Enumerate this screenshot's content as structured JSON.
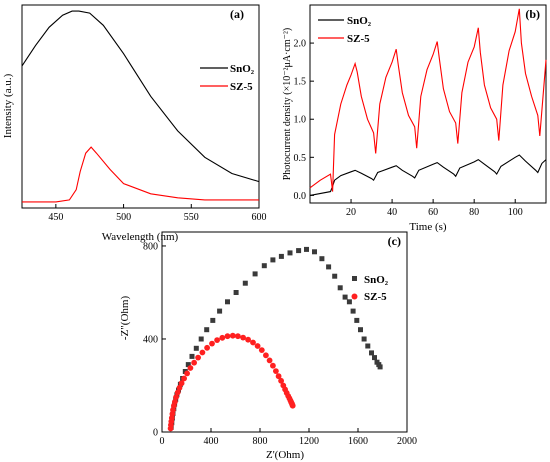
{
  "chart_data": [
    {
      "panel_label": "(a)",
      "type": "line",
      "xlabel": "Wavelength (nm)",
      "ylabel": "Intensity (a.u.)",
      "xlim": [
        425,
        600
      ],
      "ylim": [
        0,
        1.0
      ],
      "x_ticks": [
        450,
        500,
        550,
        600
      ],
      "y_ticks": [],
      "legend_placement": "right",
      "series": [
        {
          "name": "SnO₂",
          "color": "#000000",
          "x": [
            425,
            435,
            445,
            455,
            462,
            467,
            475,
            485,
            500,
            520,
            540,
            560,
            580,
            600
          ],
          "y": [
            0.7,
            0.8,
            0.89,
            0.95,
            0.97,
            0.97,
            0.96,
            0.9,
            0.76,
            0.55,
            0.38,
            0.25,
            0.17,
            0.13
          ]
        },
        {
          "name": "SZ-5",
          "color": "#ff0000",
          "x": [
            425,
            450,
            460,
            465,
            468,
            472,
            476,
            480,
            490,
            500,
            520,
            540,
            560,
            600
          ],
          "y": [
            0.03,
            0.03,
            0.04,
            0.09,
            0.18,
            0.27,
            0.3,
            0.27,
            0.19,
            0.12,
            0.07,
            0.05,
            0.04,
            0.04
          ]
        }
      ]
    },
    {
      "panel_label": "(b)",
      "type": "line",
      "xlabel": "Time (s)",
      "ylabel": "Photocurrent density (×10⁻²μA·cm⁻²)",
      "xlim": [
        0,
        115
      ],
      "ylim": [
        -0.1,
        2.5
      ],
      "x_ticks": [
        20,
        40,
        60,
        80,
        100
      ],
      "y_ticks": [
        0.0,
        0.5,
        1.0,
        1.5,
        2.0
      ],
      "legend_placement": "top-left",
      "series": [
        {
          "name": "SnO₂",
          "color": "#000000",
          "x": [
            0,
            10,
            11,
            12,
            15,
            20,
            22,
            25,
            30,
            31,
            33,
            40,
            42,
            45,
            50,
            51,
            53,
            60,
            62,
            65,
            70,
            71,
            73,
            80,
            82,
            85,
            90,
            91,
            93,
            100,
            102,
            105,
            110,
            111,
            113,
            115
          ],
          "y": [
            0.0,
            0.05,
            0.12,
            0.2,
            0.26,
            0.31,
            0.33,
            0.29,
            0.22,
            0.2,
            0.3,
            0.37,
            0.39,
            0.33,
            0.25,
            0.23,
            0.33,
            0.41,
            0.43,
            0.37,
            0.28,
            0.25,
            0.36,
            0.44,
            0.47,
            0.41,
            0.31,
            0.28,
            0.38,
            0.5,
            0.53,
            0.45,
            0.33,
            0.3,
            0.42,
            0.47
          ]
        },
        {
          "name": "SZ-5",
          "color": "#ff0000",
          "x": [
            0,
            5,
            10,
            11,
            12,
            15,
            18,
            20,
            22,
            23,
            25,
            28,
            31,
            32,
            34,
            37,
            40,
            42,
            43,
            45,
            48,
            51,
            52,
            54,
            57,
            60,
            62,
            63,
            65,
            68,
            71,
            72,
            74,
            77,
            80,
            82,
            83,
            85,
            88,
            91,
            92,
            94,
            97,
            100,
            102,
            103,
            105,
            108,
            111,
            112,
            115
          ],
          "y": [
            0.1,
            0.2,
            0.28,
            0.05,
            0.8,
            1.2,
            1.45,
            1.58,
            1.73,
            1.62,
            1.3,
            1.0,
            0.82,
            0.55,
            1.2,
            1.55,
            1.75,
            1.92,
            1.72,
            1.35,
            1.05,
            0.9,
            0.62,
            1.3,
            1.65,
            1.85,
            2.02,
            1.8,
            1.4,
            1.1,
            0.95,
            0.68,
            1.35,
            1.75,
            1.95,
            2.2,
            1.88,
            1.45,
            1.15,
            1.0,
            0.72,
            1.45,
            1.9,
            2.15,
            2.45,
            2.0,
            1.6,
            1.3,
            1.05,
            0.78,
            1.78
          ]
        }
      ]
    },
    {
      "panel_label": "(c)",
      "type": "scatter",
      "xlabel": "Z'(Ohm)",
      "ylabel": "-Z\"(Ohm)",
      "xlim": [
        0,
        2000
      ],
      "ylim": [
        0,
        860
      ],
      "x_ticks": [
        0,
        400,
        800,
        1200,
        1600,
        2000
      ],
      "y_ticks": [
        0,
        400,
        800
      ],
      "legend_placement": "right",
      "series": [
        {
          "name": "SnO₂",
          "color": "#3a3a3a",
          "marker": "square",
          "x": [
            75,
            80,
            85,
            90,
            96,
            103,
            112,
            122,
            135,
            150,
            168,
            190,
            215,
            245,
            280,
            320,
            365,
            415,
            470,
            535,
            605,
            680,
            760,
            835,
            905,
            975,
            1045,
            1115,
            1180,
            1245,
            1305,
            1360,
            1410,
            1455,
            1495,
            1530,
            1560,
            1590,
            1620,
            1650,
            1680,
            1710,
            1735,
            1755,
            1770,
            1780
          ],
          "y": [
            20,
            40,
            60,
            80,
            100,
            120,
            140,
            160,
            180,
            205,
            230,
            260,
            290,
            325,
            360,
            400,
            440,
            480,
            520,
            560,
            600,
            640,
            680,
            715,
            740,
            755,
            770,
            780,
            785,
            775,
            745,
            710,
            670,
            620,
            580,
            560,
            520,
            480,
            440,
            400,
            370,
            340,
            320,
            300,
            290,
            280
          ]
        },
        {
          "name": "SZ-5",
          "color": "#ff2020",
          "marker": "circle",
          "x": [
            70,
            73,
            76,
            80,
            85,
            90,
            97,
            105,
            115,
            128,
            143,
            160,
            180,
            205,
            232,
            262,
            295,
            330,
            368,
            408,
            450,
            492,
            535,
            578,
            620,
            662,
            703,
            743,
            780,
            815,
            848,
            878,
            905,
            930,
            952,
            972,
            990,
            1005,
            1018,
            1030,
            1040,
            1048,
            1055,
            1060,
            1064,
            1067
          ],
          "y": [
            15,
            30,
            45,
            60,
            78,
            95,
            113,
            130,
            150,
            170,
            190,
            210,
            230,
            252,
            275,
            298,
            320,
            342,
            362,
            380,
            395,
            405,
            412,
            414,
            412,
            406,
            397,
            385,
            370,
            352,
            330,
            308,
            285,
            262,
            240,
            220,
            200,
            183,
            168,
            155,
            145,
            136,
            128,
            122,
            117,
            113
          ]
        }
      ]
    }
  ]
}
